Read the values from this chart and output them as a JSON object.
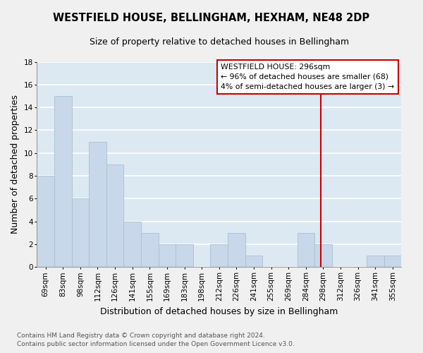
{
  "title": "WESTFIELD HOUSE, BELLINGHAM, HEXHAM, NE48 2DP",
  "subtitle": "Size of property relative to detached houses in Bellingham",
  "xlabel": "Distribution of detached houses by size in Bellingham",
  "ylabel": "Number of detached properties",
  "categories": [
    "69sqm",
    "83sqm",
    "98sqm",
    "112sqm",
    "126sqm",
    "141sqm",
    "155sqm",
    "169sqm",
    "183sqm",
    "198sqm",
    "212sqm",
    "226sqm",
    "241sqm",
    "255sqm",
    "269sqm",
    "284sqm",
    "298sqm",
    "312sqm",
    "326sqm",
    "341sqm",
    "355sqm"
  ],
  "values": [
    8,
    15,
    6,
    11,
    9,
    4,
    3,
    2,
    2,
    0,
    2,
    3,
    1,
    0,
    0,
    3,
    2,
    0,
    0,
    1,
    1
  ],
  "bar_color": "#c8d8ea",
  "bar_edge_color": "#aabfce",
  "grid_color": "#ffffff",
  "background_color": "#dce8f2",
  "property_line_color": "#cc0000",
  "annotation_line1": "WESTFIELD HOUSE: 296sqm",
  "annotation_line2": "← 96% of detached houses are smaller (68)",
  "annotation_line3": "4% of semi-detached houses are larger (3) →",
  "annotation_box_color": "#cc0000",
  "footnote": "Contains HM Land Registry data © Crown copyright and database right 2024.\nContains public sector information licensed under the Open Government Licence v3.0.",
  "ylim": [
    0,
    18
  ],
  "yticks": [
    0,
    2,
    4,
    6,
    8,
    10,
    12,
    14,
    16,
    18
  ],
  "fig_bg": "#f0f0f0",
  "title_fontsize": 10.5,
  "subtitle_fontsize": 9,
  "axis_label_fontsize": 9,
  "tick_fontsize": 7.5
}
